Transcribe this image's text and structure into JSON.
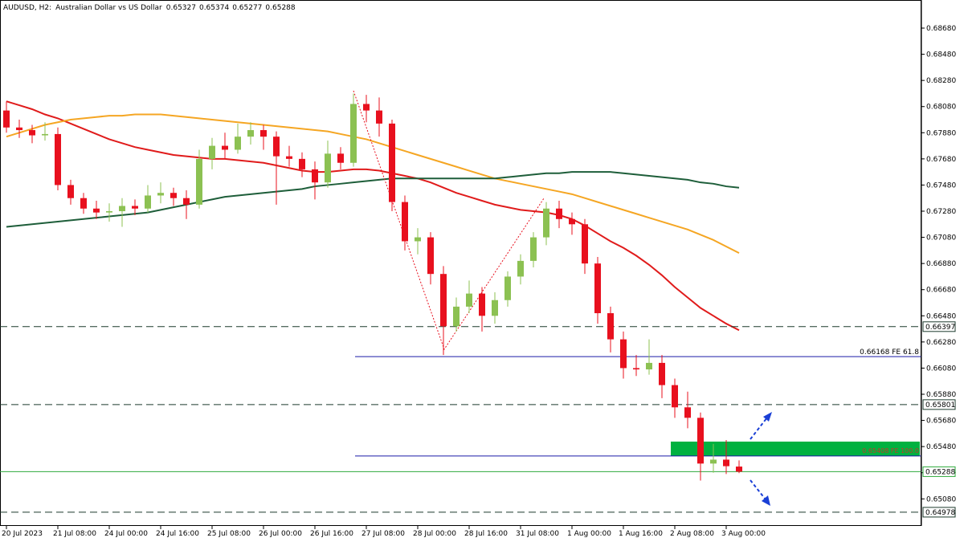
{
  "chart_data": {
    "type": "candlestick",
    "symbol": "AUDUSD, H2:",
    "description": "Australian Dollar vs US Dollar",
    "categories": [
      "20 Jul 2023",
      null,
      null,
      null,
      "21 Jul 08:00",
      null,
      null,
      null,
      "24 Jul 00:00",
      null,
      null,
      null,
      "24 Jul 16:00",
      null,
      null,
      null,
      "25 Jul 08:00",
      null,
      null,
      null,
      "26 Jul 00:00",
      null,
      null,
      null,
      "26 Jul 16:00",
      null,
      null,
      null,
      "27 Jul 08:00",
      null,
      null,
      null,
      "28 Jul 00:00",
      null,
      null,
      null,
      "28 Jul 16:00",
      null,
      null,
      null,
      "31 Jul 08:00",
      null,
      null,
      null,
      "1 Aug 00:00",
      null,
      null,
      null,
      "1 Aug 16:00",
      null,
      null,
      null,
      "2 Aug 08:00",
      null,
      null,
      null,
      "3 Aug 00:00",
      null
    ],
    "ohlc": [
      [
        0.6805,
        0.6812,
        0.6788,
        0.6792
      ],
      [
        0.6792,
        0.6798,
        0.6784,
        0.679
      ],
      [
        0.679,
        0.6794,
        0.678,
        0.6786
      ],
      [
        0.6786,
        0.6796,
        0.6782,
        0.6787
      ],
      [
        0.6787,
        0.6792,
        0.6744,
        0.6748
      ],
      [
        0.6748,
        0.6752,
        0.6733,
        0.6738
      ],
      [
        0.6738,
        0.6742,
        0.6726,
        0.673
      ],
      [
        0.673,
        0.6736,
        0.6722,
        0.6727
      ],
      [
        0.6727,
        0.6734,
        0.672,
        0.6728
      ],
      [
        0.6728,
        0.6738,
        0.6716,
        0.6732
      ],
      [
        0.6732,
        0.6737,
        0.6725,
        0.673
      ],
      [
        0.673,
        0.6748,
        0.6727,
        0.674
      ],
      [
        0.674,
        0.675,
        0.6734,
        0.6742
      ],
      [
        0.6742,
        0.6746,
        0.6732,
        0.6738
      ],
      [
        0.6738,
        0.6744,
        0.6722,
        0.6733
      ],
      [
        0.6733,
        0.6775,
        0.673,
        0.6768
      ],
      [
        0.6768,
        0.6784,
        0.676,
        0.6778
      ],
      [
        0.6778,
        0.6788,
        0.6768,
        0.6775
      ],
      [
        0.6775,
        0.6795,
        0.6772,
        0.6785
      ],
      [
        0.6785,
        0.6796,
        0.6779,
        0.679
      ],
      [
        0.679,
        0.6794,
        0.6775,
        0.6785
      ],
      [
        0.6785,
        0.6789,
        0.6733,
        0.677
      ],
      [
        0.677,
        0.6778,
        0.6762,
        0.6768
      ],
      [
        0.6768,
        0.6773,
        0.6754,
        0.676
      ],
      [
        0.676,
        0.6766,
        0.6737,
        0.675
      ],
      [
        0.675,
        0.6782,
        0.6746,
        0.6772
      ],
      [
        0.6772,
        0.6777,
        0.676,
        0.6765
      ],
      [
        0.6765,
        0.6818,
        0.6762,
        0.681
      ],
      [
        0.681,
        0.6817,
        0.6796,
        0.6805
      ],
      [
        0.6805,
        0.6815,
        0.6785,
        0.6795
      ],
      [
        0.6795,
        0.6798,
        0.6728,
        0.6735
      ],
      [
        0.6735,
        0.674,
        0.6698,
        0.6705
      ],
      [
        0.6705,
        0.6715,
        0.6695,
        0.6708
      ],
      [
        0.6708,
        0.6712,
        0.6672,
        0.668
      ],
      [
        0.668,
        0.6686,
        0.6618,
        0.664
      ],
      [
        0.664,
        0.6662,
        0.6636,
        0.6655
      ],
      [
        0.6655,
        0.6675,
        0.665,
        0.6665
      ],
      [
        0.6665,
        0.667,
        0.6636,
        0.6648
      ],
      [
        0.6648,
        0.6666,
        0.6642,
        0.666
      ],
      [
        0.666,
        0.6682,
        0.6655,
        0.6678
      ],
      [
        0.6678,
        0.6695,
        0.6672,
        0.669
      ],
      [
        0.669,
        0.6712,
        0.6685,
        0.6708
      ],
      [
        0.6708,
        0.6735,
        0.6702,
        0.673
      ],
      [
        0.673,
        0.6736,
        0.6715,
        0.6722
      ],
      [
        0.6722,
        0.6727,
        0.671,
        0.6718
      ],
      [
        0.6718,
        0.6722,
        0.668,
        0.6688
      ],
      [
        0.6688,
        0.6693,
        0.6642,
        0.665
      ],
      [
        0.665,
        0.6655,
        0.662,
        0.663
      ],
      [
        0.663,
        0.6636,
        0.66,
        0.6608
      ],
      [
        0.6608,
        0.6618,
        0.6602,
        0.6607
      ],
      [
        0.6607,
        0.663,
        0.6603,
        0.6612
      ],
      [
        0.6612,
        0.6618,
        0.6585,
        0.6595
      ],
      [
        0.6595,
        0.66,
        0.657,
        0.6578
      ],
      [
        0.6578,
        0.659,
        0.6562,
        0.657
      ],
      [
        0.657,
        0.6574,
        0.6522,
        0.6535
      ],
      [
        0.6535,
        0.655,
        0.6528,
        0.6538
      ],
      [
        0.6538,
        0.6553,
        0.6527,
        0.6533
      ],
      [
        0.65327,
        0.65374,
        0.65277,
        0.65288
      ]
    ],
    "bull_color": "#8cc152",
    "bear_color": "#e8101e",
    "series": [
      {
        "color": "#e01b1b",
        "values": [
          0.6812,
          0.6809,
          0.6806,
          0.6802,
          0.6799,
          0.6795,
          0.6791,
          0.6787,
          0.6783,
          0.678,
          0.6777,
          0.6775,
          0.6773,
          0.6771,
          0.677,
          0.6769,
          0.6768,
          0.6768,
          0.6767,
          0.6766,
          0.6765,
          0.6763,
          0.6761,
          0.6759,
          0.6758,
          0.6758,
          0.6759,
          0.676,
          0.676,
          0.6759,
          0.6757,
          0.6755,
          0.6753,
          0.675,
          0.6746,
          0.6742,
          0.6739,
          0.6736,
          0.6733,
          0.6731,
          0.6729,
          0.6728,
          0.6727,
          0.6725,
          0.6722,
          0.6717,
          0.6711,
          0.6705,
          0.67,
          0.6694,
          0.6687,
          0.6679,
          0.667,
          0.6662,
          0.6654,
          0.6648,
          0.6642,
          0.6637
        ]
      },
      {
        "color": "#f5a623",
        "values": [
          0.6785,
          0.6788,
          0.6791,
          0.6794,
          0.6796,
          0.6798,
          0.6799,
          0.68,
          0.6801,
          0.6801,
          0.6802,
          0.6802,
          0.6802,
          0.6801,
          0.68,
          0.6799,
          0.6798,
          0.6797,
          0.6796,
          0.6795,
          0.6794,
          0.6793,
          0.6792,
          0.6791,
          0.679,
          0.6789,
          0.6787,
          0.6785,
          0.6783,
          0.678,
          0.6777,
          0.6774,
          0.6771,
          0.6768,
          0.6765,
          0.6762,
          0.6759,
          0.6756,
          0.6753,
          0.6751,
          0.6749,
          0.6747,
          0.6745,
          0.6743,
          0.6741,
          0.6738,
          0.6735,
          0.6732,
          0.6729,
          0.6726,
          0.6723,
          0.672,
          0.6717,
          0.6714,
          0.671,
          0.6706,
          0.6701,
          0.6696
        ]
      },
      {
        "color": "#1e5e3a",
        "values": [
          0.6716,
          0.6717,
          0.6718,
          0.6719,
          0.672,
          0.6721,
          0.6722,
          0.6723,
          0.6724,
          0.6725,
          0.6726,
          0.6727,
          0.6729,
          0.6731,
          0.6733,
          0.6735,
          0.6737,
          0.6739,
          0.674,
          0.6741,
          0.6742,
          0.6743,
          0.6744,
          0.6745,
          0.6747,
          0.6748,
          0.6749,
          0.675,
          0.6751,
          0.6752,
          0.6753,
          0.6753,
          0.6753,
          0.6753,
          0.6753,
          0.6753,
          0.6753,
          0.6753,
          0.6753,
          0.6754,
          0.6755,
          0.6756,
          0.6757,
          0.6757,
          0.6758,
          0.6758,
          0.6758,
          0.6758,
          0.6757,
          0.6756,
          0.6755,
          0.6754,
          0.6753,
          0.6752,
          0.675,
          0.6749,
          0.6747,
          0.6746
        ]
      }
    ],
    "ylim": [
      0.64873,
      0.68895
    ],
    "yticks": [
      {
        "value": 0.6868,
        "label": "0.68680"
      },
      {
        "value": 0.6848,
        "label": "0.68480"
      },
      {
        "value": 0.6828,
        "label": "0.68280"
      },
      {
        "value": 0.6808,
        "label": "0.68080"
      },
      {
        "value": 0.6788,
        "label": "0.67880"
      },
      {
        "value": 0.6768,
        "label": "0.67680"
      },
      {
        "value": 0.6748,
        "label": "0.67480"
      },
      {
        "value": 0.6728,
        "label": "0.67280"
      },
      {
        "value": 0.6708,
        "label": "0.67080"
      },
      {
        "value": 0.6688,
        "label": "0.66880"
      },
      {
        "value": 0.6668,
        "label": "0.66680"
      },
      {
        "value": 0.6648,
        "label": "0.66480"
      },
      {
        "value": 0.6628,
        "label": "0.66280"
      },
      {
        "value": 0.6608,
        "label": "0.66080"
      },
      {
        "value": 0.6588,
        "label": "0.65880"
      },
      {
        "value": 0.6568,
        "label": "0.65680"
      },
      {
        "value": 0.6548,
        "label": "0.65480"
      },
      {
        "value": 0.6528,
        "label": "0.65280"
      },
      {
        "value": 0.6508,
        "label": "0.65080"
      }
    ],
    "levels": [
      {
        "value": 0.66397,
        "style": "dashed",
        "color": "#1c3a2c"
      },
      {
        "value": 0.65801,
        "style": "dashed",
        "color": "#1c3a2c"
      },
      {
        "value": 0.65288,
        "style": "solid",
        "color": "#2eaa3c"
      },
      {
        "value": 0.64978,
        "style": "dashed",
        "color": "#1c3a2c"
      }
    ],
    "fibo": [
      {
        "value": 0.66168,
        "label": "0.66168 FE 61.8"
      },
      {
        "value": 0.65408,
        "label": "0.65408 FE 100.0"
      }
    ],
    "zone": {
      "low": 0.65408,
      "high": 0.65518,
      "color": "#00b140"
    }
  }
}
